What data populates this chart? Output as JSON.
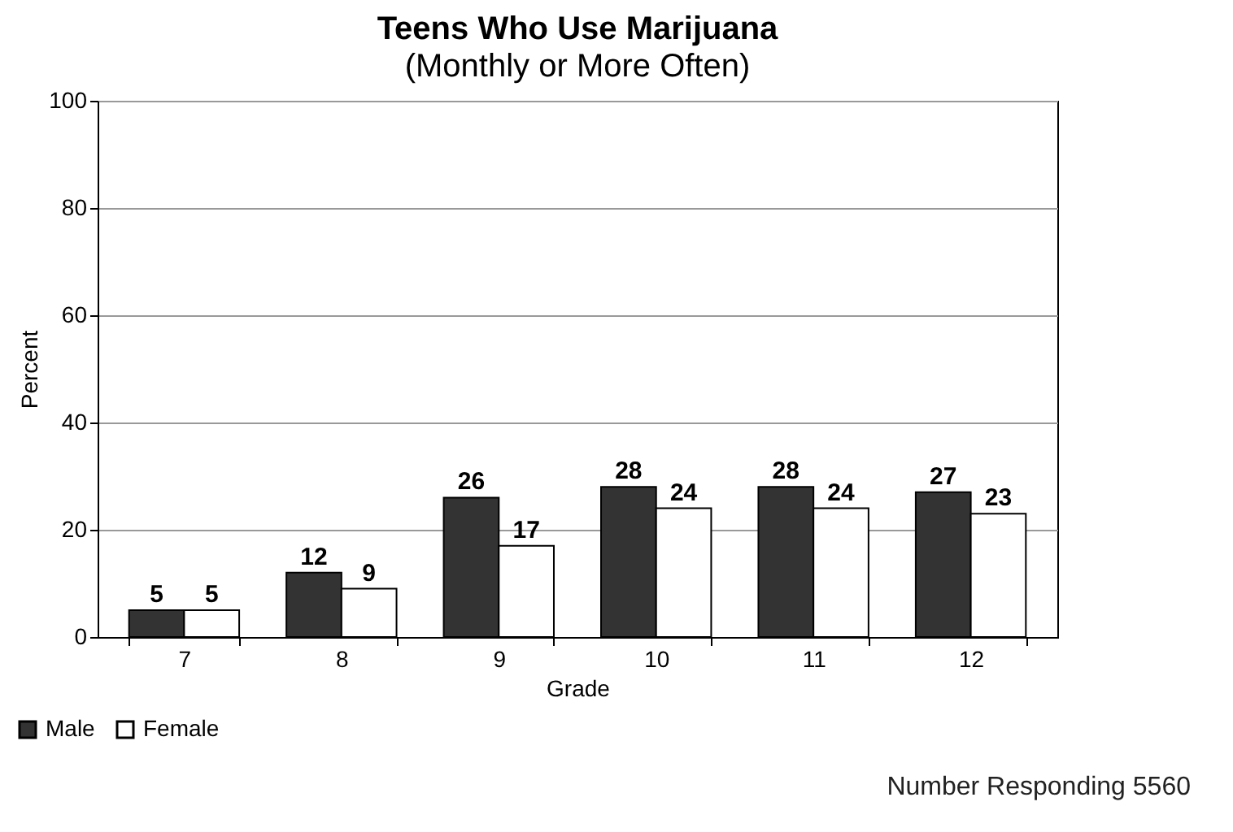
{
  "chart_data": {
    "type": "bar",
    "title": "Teens Who Use Marijuana",
    "subtitle": "(Monthly or More Often)",
    "xlabel": "Grade",
    "ylabel": "Percent",
    "categories": [
      "7",
      "8",
      "9",
      "10",
      "11",
      "12"
    ],
    "series": [
      {
        "name": "Male",
        "color": "#333333",
        "values": [
          5,
          12,
          26,
          28,
          28,
          27
        ]
      },
      {
        "name": "Female",
        "color": "#ffffff",
        "values": [
          5,
          9,
          17,
          24,
          24,
          23
        ]
      }
    ],
    "ylim": [
      0,
      100
    ],
    "yticks": [
      0,
      20,
      40,
      60,
      80,
      100
    ],
    "grid": "y",
    "legend": "bottom left",
    "data_labels": true,
    "annotations": [
      "Number Responding 5560"
    ]
  }
}
